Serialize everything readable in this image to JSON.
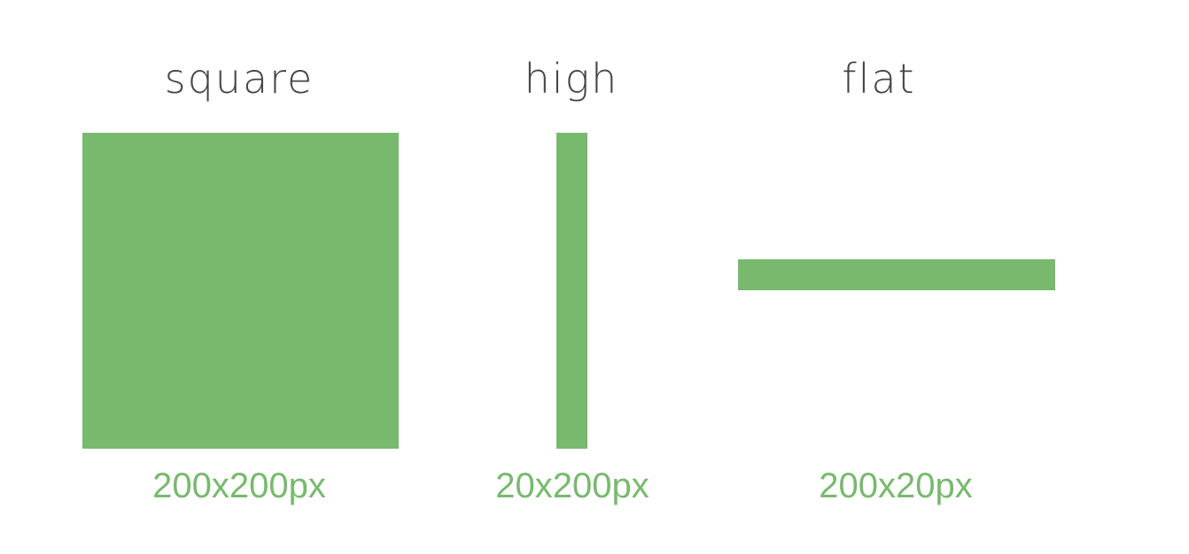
{
  "shapes": [
    {
      "title": "square",
      "size": "200x200px"
    },
    {
      "title": "high",
      "size": "20x200px"
    },
    {
      "title": "flat",
      "size": "200x20px"
    }
  ]
}
